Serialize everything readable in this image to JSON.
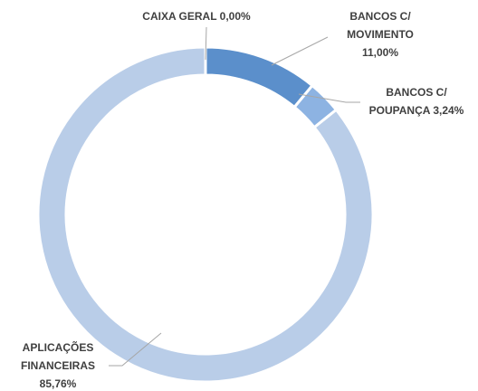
{
  "chart_data": {
    "type": "donut",
    "categories": [
      "CAIXA GERAL",
      "BANCOS C/ MOVIMENTO",
      "BANCOS C/ POUPANÇA",
      "APLICAÇÕES FINANCEIRAS"
    ],
    "values": [
      0.0,
      11.0,
      3.24,
      85.76
    ],
    "value_labels": [
      "0,00%",
      "11,00%",
      "3,24%",
      "85,76%"
    ],
    "colors": [
      "#2f5f9e",
      "#5b8fcb",
      "#8db3e2",
      "#b9cde8"
    ]
  }
}
